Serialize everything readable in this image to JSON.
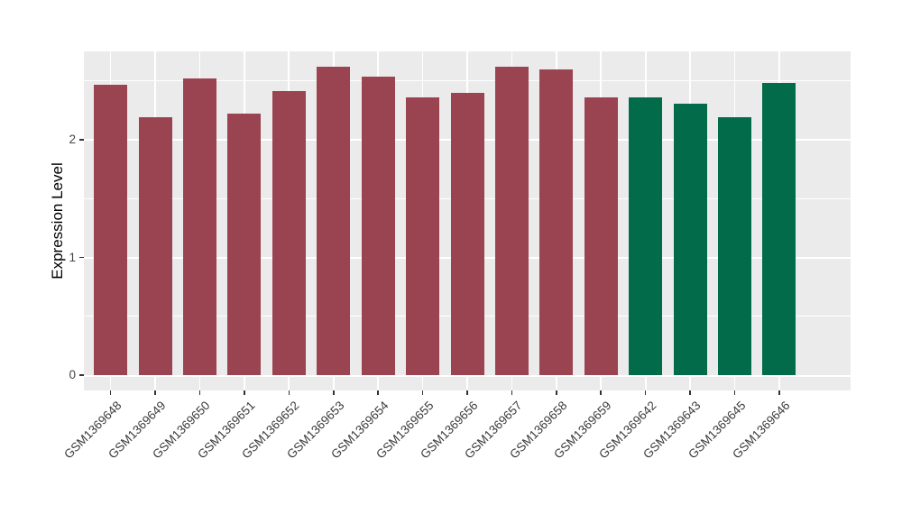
{
  "chart_data": {
    "type": "bar",
    "title": "",
    "xlabel": "",
    "ylabel": "Expression Level",
    "categories": [
      "GSM1369648",
      "GSM1369649",
      "GSM1369650",
      "GSM1369651",
      "GSM1369652",
      "GSM1369653",
      "GSM1369654",
      "GSM1369655",
      "GSM1369656",
      "GSM1369657",
      "GSM1369658",
      "GSM1369659",
      "GSM1369642",
      "GSM1369643",
      "GSM1369645",
      "GSM1369646"
    ],
    "values": [
      2.47,
      2.19,
      2.52,
      2.22,
      2.41,
      2.62,
      2.54,
      2.36,
      2.4,
      2.62,
      2.6,
      2.36,
      2.36,
      2.31,
      2.19,
      2.48
    ],
    "bar_colors": [
      "#9B4451",
      "#9B4451",
      "#9B4451",
      "#9B4451",
      "#9B4451",
      "#9B4451",
      "#9B4451",
      "#9B4451",
      "#9B4451",
      "#9B4451",
      "#9B4451",
      "#9B4451",
      "#026B49",
      "#026B49",
      "#026B49",
      "#026B49"
    ],
    "yticks": [
      0,
      1,
      2
    ],
    "ylim": [
      0,
      2.75
    ],
    "grid": true,
    "legend_position": "none",
    "x_label_angle": 45,
    "colors": {
      "bar_group_1": "#9B4451",
      "bar_group_2": "#026B49",
      "panel_background": "#EBEBEB",
      "gridline": "#FFFFFF",
      "tick_text": "#444444",
      "axis_title_text": "#000000"
    }
  }
}
